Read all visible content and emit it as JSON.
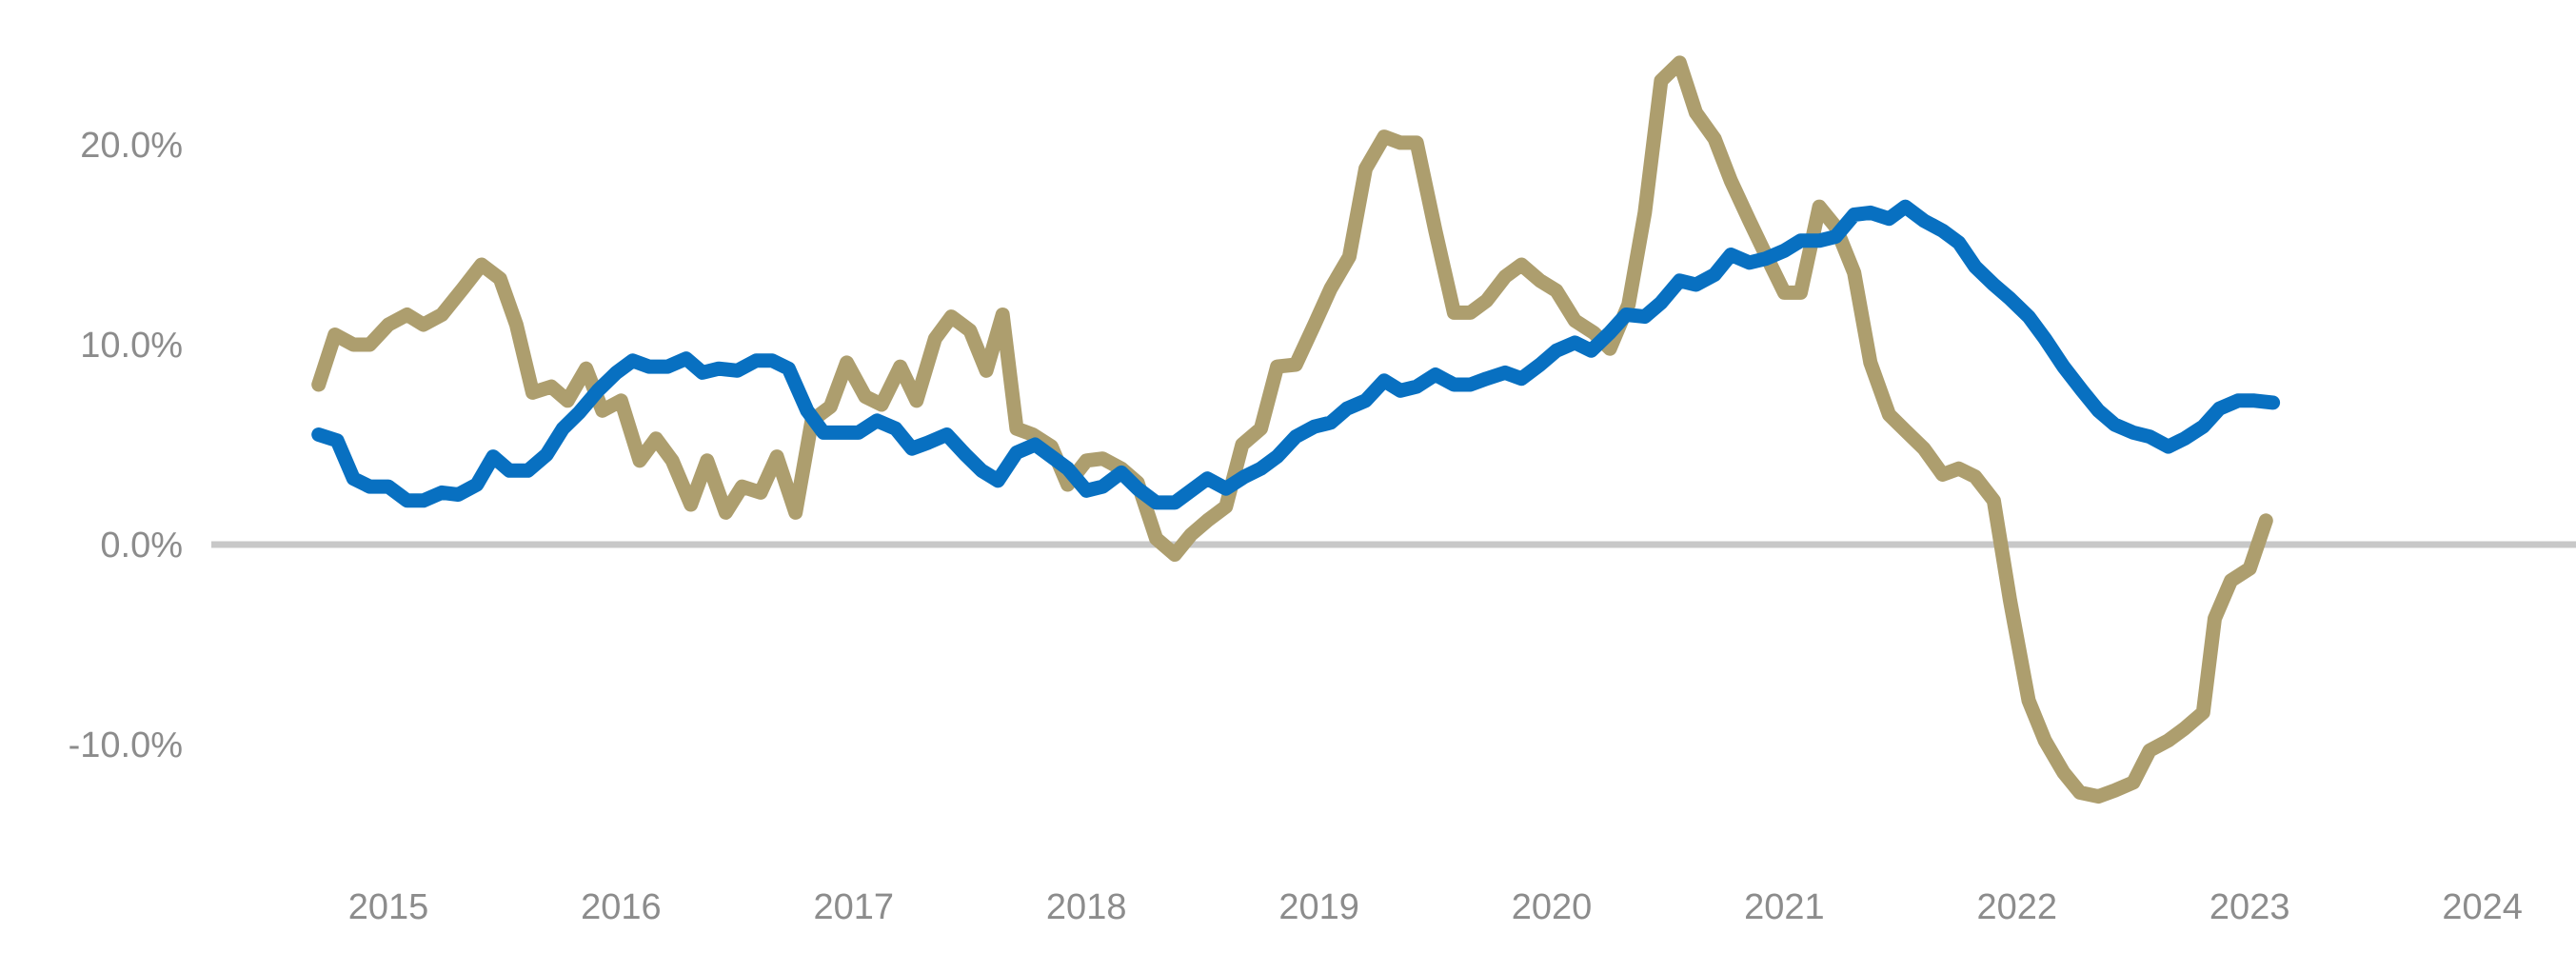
{
  "chart_data": {
    "type": "line",
    "title": "",
    "xlabel": "",
    "ylabel": "",
    "xlim": [
      2014.75,
      2024.3
    ],
    "ylim": [
      -15,
      25
    ],
    "grid": false,
    "legend": "none",
    "zero_line_color": "#c8c8c8",
    "y_ticks": [
      {
        "value": 20,
        "label": "20.0%"
      },
      {
        "value": 10,
        "label": "10.0%"
      },
      {
        "value": 0,
        "label": "0.0%"
      },
      {
        "value": -10,
        "label": "-10.0%"
      }
    ],
    "x_ticks": [
      {
        "value": 2015.1,
        "label": "2015"
      },
      {
        "value": 2016.1,
        "label": "2016"
      },
      {
        "value": 2017.1,
        "label": "2017"
      },
      {
        "value": 2018.1,
        "label": "2018"
      },
      {
        "value": 2019.1,
        "label": "2019"
      },
      {
        "value": 2020.1,
        "label": "2020"
      },
      {
        "value": 2021.1,
        "label": "2021"
      },
      {
        "value": 2022.1,
        "label": "2022"
      },
      {
        "value": 2023.1,
        "label": "2023"
      },
      {
        "value": 2024.1,
        "label": "2024"
      }
    ],
    "series": [
      {
        "color": "#ad9e6e",
        "points": [
          [
            2014.8,
            8.0
          ],
          [
            2014.87,
            10.5
          ],
          [
            2014.95,
            10.0
          ],
          [
            2015.02,
            10.0
          ],
          [
            2015.1,
            11.0
          ],
          [
            2015.18,
            11.5
          ],
          [
            2015.25,
            11.0
          ],
          [
            2015.33,
            11.5
          ],
          [
            2015.42,
            12.8
          ],
          [
            2015.5,
            14.0
          ],
          [
            2015.58,
            13.3
          ],
          [
            2015.65,
            11.0
          ],
          [
            2015.72,
            7.6
          ],
          [
            2015.8,
            7.9
          ],
          [
            2015.87,
            7.2
          ],
          [
            2015.95,
            8.8
          ],
          [
            2016.02,
            6.7
          ],
          [
            2016.1,
            7.2
          ],
          [
            2016.18,
            4.2
          ],
          [
            2016.25,
            5.3
          ],
          [
            2016.32,
            4.2
          ],
          [
            2016.4,
            2.0
          ],
          [
            2016.47,
            4.2
          ],
          [
            2016.55,
            1.6
          ],
          [
            2016.62,
            2.9
          ],
          [
            2016.7,
            2.6
          ],
          [
            2016.77,
            4.4
          ],
          [
            2016.85,
            1.6
          ],
          [
            2016.92,
            6.2
          ],
          [
            2017.0,
            6.9
          ],
          [
            2017.07,
            9.1
          ],
          [
            2017.15,
            7.4
          ],
          [
            2017.22,
            7.0
          ],
          [
            2017.3,
            8.9
          ],
          [
            2017.37,
            7.2
          ],
          [
            2017.45,
            10.3
          ],
          [
            2017.52,
            11.4
          ],
          [
            2017.6,
            10.7
          ],
          [
            2017.67,
            8.7
          ],
          [
            2017.74,
            11.5
          ],
          [
            2017.8,
            5.8
          ],
          [
            2017.87,
            5.5
          ],
          [
            2017.95,
            4.9
          ],
          [
            2018.02,
            3.0
          ],
          [
            2018.1,
            4.2
          ],
          [
            2018.17,
            4.3
          ],
          [
            2018.25,
            3.8
          ],
          [
            2018.32,
            3.1
          ],
          [
            2018.4,
            0.3
          ],
          [
            2018.48,
            -0.5
          ],
          [
            2018.55,
            0.5
          ],
          [
            2018.62,
            1.2
          ],
          [
            2018.7,
            1.9
          ],
          [
            2018.77,
            5.0
          ],
          [
            2018.85,
            5.8
          ],
          [
            2018.92,
            8.9
          ],
          [
            2019.0,
            9.0
          ],
          [
            2019.08,
            11.0
          ],
          [
            2019.15,
            12.8
          ],
          [
            2019.23,
            14.4
          ],
          [
            2019.3,
            18.8
          ],
          [
            2019.38,
            20.4
          ],
          [
            2019.45,
            20.1
          ],
          [
            2019.52,
            20.1
          ],
          [
            2019.6,
            15.7
          ],
          [
            2019.68,
            11.6
          ],
          [
            2019.75,
            11.6
          ],
          [
            2019.82,
            12.2
          ],
          [
            2019.9,
            13.4
          ],
          [
            2019.97,
            14.0
          ],
          [
            2020.05,
            13.2
          ],
          [
            2020.12,
            12.7
          ],
          [
            2020.2,
            11.2
          ],
          [
            2020.28,
            10.6
          ],
          [
            2020.35,
            9.8
          ],
          [
            2020.43,
            12.0
          ],
          [
            2020.5,
            16.6
          ],
          [
            2020.57,
            23.2
          ],
          [
            2020.65,
            24.1
          ],
          [
            2020.72,
            21.6
          ],
          [
            2020.8,
            20.3
          ],
          [
            2020.87,
            18.2
          ],
          [
            2020.95,
            16.2
          ],
          [
            2021.02,
            14.5
          ],
          [
            2021.1,
            12.6
          ],
          [
            2021.17,
            12.6
          ],
          [
            2021.25,
            16.9
          ],
          [
            2021.32,
            15.9
          ],
          [
            2021.4,
            13.6
          ],
          [
            2021.47,
            9.1
          ],
          [
            2021.55,
            6.5
          ],
          [
            2021.62,
            5.7
          ],
          [
            2021.7,
            4.8
          ],
          [
            2021.78,
            3.5
          ],
          [
            2021.85,
            3.8
          ],
          [
            2021.92,
            3.4
          ],
          [
            2022.0,
            2.2
          ],
          [
            2022.07,
            -2.8
          ],
          [
            2022.15,
            -7.8
          ],
          [
            2022.22,
            -9.8
          ],
          [
            2022.3,
            -11.4
          ],
          [
            2022.37,
            -12.4
          ],
          [
            2022.45,
            -12.6
          ],
          [
            2022.52,
            -12.3
          ],
          [
            2022.6,
            -11.9
          ],
          [
            2022.67,
            -10.3
          ],
          [
            2022.75,
            -9.8
          ],
          [
            2022.82,
            -9.2
          ],
          [
            2022.9,
            -8.4
          ],
          [
            2022.95,
            -3.7
          ],
          [
            2023.02,
            -1.8
          ],
          [
            2023.1,
            -1.2
          ],
          [
            2023.17,
            1.2
          ]
        ]
      },
      {
        "color": "#0870c1",
        "points": [
          [
            2014.8,
            5.5
          ],
          [
            2014.88,
            5.2
          ],
          [
            2014.95,
            3.3
          ],
          [
            2015.02,
            2.9
          ],
          [
            2015.1,
            2.9
          ],
          [
            2015.18,
            2.2
          ],
          [
            2015.25,
            2.2
          ],
          [
            2015.33,
            2.6
          ],
          [
            2015.4,
            2.5
          ],
          [
            2015.48,
            3.0
          ],
          [
            2015.55,
            4.4
          ],
          [
            2015.62,
            3.7
          ],
          [
            2015.7,
            3.7
          ],
          [
            2015.78,
            4.5
          ],
          [
            2015.85,
            5.8
          ],
          [
            2015.92,
            6.6
          ],
          [
            2016.0,
            7.7
          ],
          [
            2016.08,
            8.6
          ],
          [
            2016.15,
            9.2
          ],
          [
            2016.22,
            8.9
          ],
          [
            2016.3,
            8.9
          ],
          [
            2016.38,
            9.3
          ],
          [
            2016.45,
            8.6
          ],
          [
            2016.52,
            8.8
          ],
          [
            2016.6,
            8.7
          ],
          [
            2016.68,
            9.2
          ],
          [
            2016.75,
            9.2
          ],
          [
            2016.82,
            8.8
          ],
          [
            2016.9,
            6.7
          ],
          [
            2016.97,
            5.6
          ],
          [
            2017.05,
            5.6
          ],
          [
            2017.12,
            5.6
          ],
          [
            2017.2,
            6.2
          ],
          [
            2017.28,
            5.8
          ],
          [
            2017.35,
            4.8
          ],
          [
            2017.42,
            5.1
          ],
          [
            2017.5,
            5.5
          ],
          [
            2017.58,
            4.5
          ],
          [
            2017.65,
            3.7
          ],
          [
            2017.72,
            3.2
          ],
          [
            2017.8,
            4.6
          ],
          [
            2017.88,
            5.0
          ],
          [
            2017.95,
            4.4
          ],
          [
            2018.02,
            3.8
          ],
          [
            2018.1,
            2.7
          ],
          [
            2018.17,
            2.9
          ],
          [
            2018.25,
            3.6
          ],
          [
            2018.32,
            2.8
          ],
          [
            2018.4,
            2.1
          ],
          [
            2018.48,
            2.1
          ],
          [
            2018.55,
            2.7
          ],
          [
            2018.62,
            3.3
          ],
          [
            2018.7,
            2.8
          ],
          [
            2018.78,
            3.4
          ],
          [
            2018.85,
            3.8
          ],
          [
            2018.92,
            4.4
          ],
          [
            2019.0,
            5.4
          ],
          [
            2019.08,
            5.9
          ],
          [
            2019.15,
            6.1
          ],
          [
            2019.22,
            6.8
          ],
          [
            2019.3,
            7.2
          ],
          [
            2019.38,
            8.2
          ],
          [
            2019.45,
            7.7
          ],
          [
            2019.52,
            7.9
          ],
          [
            2019.6,
            8.5
          ],
          [
            2019.68,
            8.0
          ],
          [
            2019.75,
            8.0
          ],
          [
            2019.82,
            8.3
          ],
          [
            2019.9,
            8.6
          ],
          [
            2019.97,
            8.3
          ],
          [
            2020.05,
            9.0
          ],
          [
            2020.12,
            9.7
          ],
          [
            2020.2,
            10.1
          ],
          [
            2020.27,
            9.7
          ],
          [
            2020.35,
            10.6
          ],
          [
            2020.42,
            11.5
          ],
          [
            2020.5,
            11.4
          ],
          [
            2020.57,
            12.1
          ],
          [
            2020.65,
            13.2
          ],
          [
            2020.72,
            13.0
          ],
          [
            2020.8,
            13.5
          ],
          [
            2020.87,
            14.5
          ],
          [
            2020.95,
            14.1
          ],
          [
            2021.02,
            14.3
          ],
          [
            2021.1,
            14.7
          ],
          [
            2021.17,
            15.2
          ],
          [
            2021.25,
            15.2
          ],
          [
            2021.32,
            15.4
          ],
          [
            2021.4,
            16.5
          ],
          [
            2021.47,
            16.6
          ],
          [
            2021.55,
            16.3
          ],
          [
            2021.62,
            16.9
          ],
          [
            2021.7,
            16.2
          ],
          [
            2021.78,
            15.7
          ],
          [
            2021.85,
            15.1
          ],
          [
            2021.92,
            13.9
          ],
          [
            2022.0,
            13.0
          ],
          [
            2022.07,
            12.3
          ],
          [
            2022.15,
            11.4
          ],
          [
            2022.22,
            10.3
          ],
          [
            2022.3,
            8.9
          ],
          [
            2022.38,
            7.7
          ],
          [
            2022.45,
            6.7
          ],
          [
            2022.52,
            6.0
          ],
          [
            2022.6,
            5.6
          ],
          [
            2022.67,
            5.4
          ],
          [
            2022.75,
            4.9
          ],
          [
            2022.82,
            5.3
          ],
          [
            2022.9,
            5.9
          ],
          [
            2022.97,
            6.8
          ],
          [
            2023.05,
            7.2
          ],
          [
            2023.12,
            7.2
          ],
          [
            2023.2,
            7.1
          ]
        ]
      }
    ]
  }
}
